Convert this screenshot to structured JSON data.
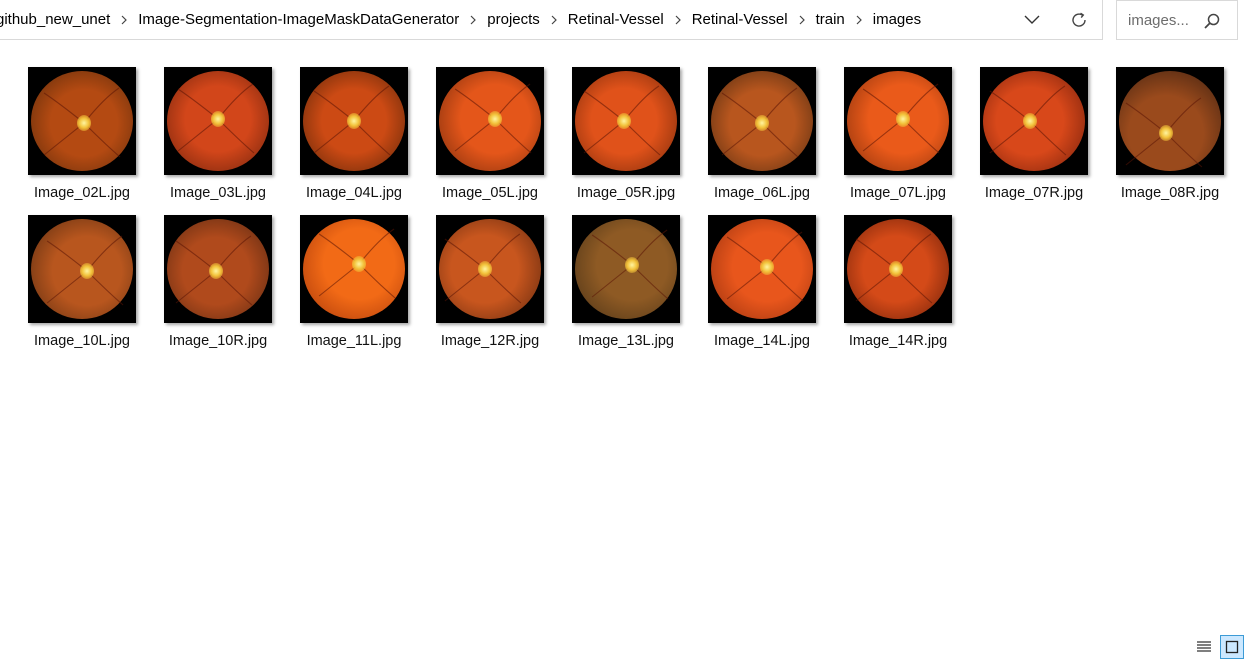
{
  "breadcrumbs": [
    "github_new_unet",
    "Image-Segmentation-ImageMaskDataGenerator",
    "projects",
    "Retinal-Vessel",
    "Retinal-Vessel",
    "train",
    "images"
  ],
  "address_bar": {
    "dropdown_icon": "chevron-down-icon",
    "refresh_icon": "refresh-icon"
  },
  "search": {
    "placeholder": "images..."
  },
  "files": [
    {
      "name": "Image_02L.jpg",
      "tone": "#b44a12",
      "tone2": "#5a2a0a",
      "disc": [
        0.52,
        0.52
      ]
    },
    {
      "name": "Image_03L.jpg",
      "tone": "#d2461a",
      "tone2": "#6e220c",
      "disc": [
        0.5,
        0.48
      ]
    },
    {
      "name": "Image_04L.jpg",
      "tone": "#cc4a14",
      "tone2": "#5e2608",
      "disc": [
        0.5,
        0.5
      ]
    },
    {
      "name": "Image_05L.jpg",
      "tone": "#e4561a",
      "tone2": "#7a2c0c",
      "disc": [
        0.55,
        0.48
      ]
    },
    {
      "name": "Image_05R.jpg",
      "tone": "#e0521a",
      "tone2": "#7a2a0a",
      "disc": [
        0.48,
        0.5
      ]
    },
    {
      "name": "Image_06L.jpg",
      "tone": "#b8561e",
      "tone2": "#4e2a10",
      "disc": [
        0.5,
        0.52
      ]
    },
    {
      "name": "Image_07L.jpg",
      "tone": "#ea5a1a",
      "tone2": "#86300c",
      "disc": [
        0.55,
        0.48
      ]
    },
    {
      "name": "Image_07R.jpg",
      "tone": "#d8481a",
      "tone2": "#741f0b",
      "disc": [
        0.46,
        0.5
      ]
    },
    {
      "name": "Image_08R.jpg",
      "tone": "#9a4a1c",
      "tone2": "#3e2010",
      "disc": [
        0.46,
        0.62
      ]
    },
    {
      "name": "Image_10L.jpg",
      "tone": "#b8561e",
      "tone2": "#5a2c10",
      "disc": [
        0.55,
        0.52
      ]
    },
    {
      "name": "Image_10R.jpg",
      "tone": "#b04a1c",
      "tone2": "#552610",
      "disc": [
        0.48,
        0.52
      ]
    },
    {
      "name": "Image_11L.jpg",
      "tone": "#f26a16",
      "tone2": "#a8380a",
      "disc": [
        0.55,
        0.45
      ]
    },
    {
      "name": "Image_12R.jpg",
      "tone": "#c8561e",
      "tone2": "#62280e",
      "disc": [
        0.45,
        0.5
      ]
    },
    {
      "name": "Image_13L.jpg",
      "tone": "#8e5a24",
      "tone2": "#4a3216",
      "disc": [
        0.56,
        0.46
      ]
    },
    {
      "name": "Image_14L.jpg",
      "tone": "#e8561c",
      "tone2": "#96300e",
      "disc": [
        0.55,
        0.48
      ]
    },
    {
      "name": "Image_14R.jpg",
      "tone": "#d44a18",
      "tone2": "#6a1e08",
      "disc": [
        0.48,
        0.5
      ]
    }
  ],
  "view_controls": {
    "details_icon": "details-view-icon",
    "large_icons_icon": "large-icons-view-icon"
  }
}
